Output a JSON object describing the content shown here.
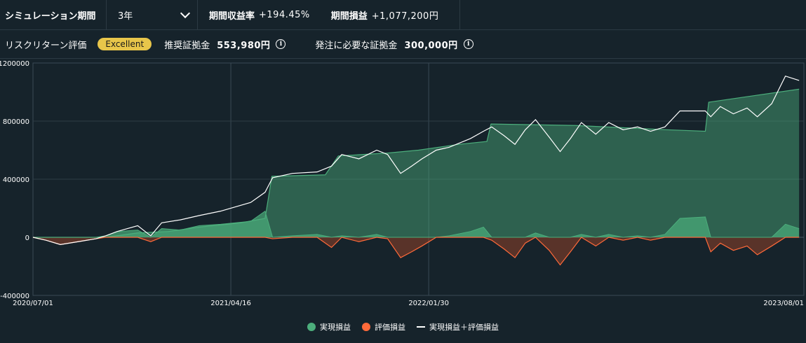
{
  "header": {
    "period_label": "シミュレーション期間",
    "period_value": "3年",
    "return_label": "期間収益率",
    "return_value": "+194.45%",
    "pnl_label": "期間損益",
    "pnl_value": "+1,077,200円"
  },
  "risk": {
    "label": "リスクリターン評価",
    "rating": "Excellent",
    "recommended_label": "推奨証拠金",
    "recommended_value": "553,980円",
    "required_label": "発注に必要な証拠金",
    "required_value": "300,000円"
  },
  "colors": {
    "realized": "#4cae7c",
    "unrealized": "#ff6a3a",
    "total": "#ffffff",
    "badge": "#e8c64a"
  },
  "chart_data": {
    "type": "area",
    "x_start": "2020/07/01",
    "x_end": "2023/08/01",
    "x_tick_labels": [
      "2020/07/01",
      "2021/04/16",
      "2022/01/30",
      "2023/08/01"
    ],
    "y_ticks": [
      1200000,
      800000,
      400000,
      0,
      -400000
    ],
    "ylim": [
      -400000,
      1200000
    ],
    "grid": true,
    "legend_position": "bottom-center",
    "series": [
      {
        "name": "実現損益",
        "color": "#4cae7c",
        "points": [
          [
            "2020/07/01",
            0
          ],
          [
            "2020/10/15",
            0
          ],
          [
            "2020/12/01",
            30000
          ],
          [
            "2021/01/15",
            40000
          ],
          [
            "2021/03/01",
            70000
          ],
          [
            "2021/05/01",
            100000
          ],
          [
            "2021/06/05",
            130000
          ],
          [
            "2021/06/15",
            420000
          ],
          [
            "2021/09/01",
            430000
          ],
          [
            "2021/09/20",
            560000
          ],
          [
            "2021/12/01",
            580000
          ],
          [
            "2022/01/15",
            600000
          ],
          [
            "2022/03/15",
            640000
          ],
          [
            "2022/04/25",
            660000
          ],
          [
            "2022/05/01",
            780000
          ],
          [
            "2022/09/01",
            770000
          ],
          [
            "2022/12/01",
            750000
          ],
          [
            "2023/01/15",
            740000
          ],
          [
            "2023/03/10",
            730000
          ],
          [
            "2023/03/15",
            930000
          ],
          [
            "2023/07/25",
            1020000
          ]
        ]
      },
      {
        "name": "評価損益",
        "color": "#ff6a3a",
        "points": [
          [
            "2020/07/01",
            0
          ],
          [
            "2020/07/20",
            -20000
          ],
          [
            "2020/08/10",
            -50000
          ],
          [
            "2020/09/05",
            -30000
          ],
          [
            "2020/10/01",
            -10000
          ],
          [
            "2020/10/15",
            10000
          ],
          [
            "2020/11/01",
            40000
          ],
          [
            "2020/12/01",
            50000
          ],
          [
            "2020/12/20",
            -30000
          ],
          [
            "2021/01/05",
            60000
          ],
          [
            "2021/02/01",
            50000
          ],
          [
            "2021/03/01",
            80000
          ],
          [
            "2021/04/01",
            90000
          ],
          [
            "2021/05/15",
            110000
          ],
          [
            "2021/06/05",
            180000
          ],
          [
            "2021/06/16",
            -10000
          ],
          [
            "2021/07/15",
            10000
          ],
          [
            "2021/08/20",
            20000
          ],
          [
            "2021/09/10",
            -70000
          ],
          [
            "2021/09/25",
            10000
          ],
          [
            "2021/10/20",
            -30000
          ],
          [
            "2021/11/15",
            20000
          ],
          [
            "2021/12/01",
            -10000
          ],
          [
            "2021/12/20",
            -140000
          ],
          [
            "2022/01/05",
            -100000
          ],
          [
            "2022/01/20",
            -60000
          ],
          [
            "2022/02/10",
            0
          ],
          [
            "2022/03/01",
            10000
          ],
          [
            "2022/04/01",
            40000
          ],
          [
            "2022/04/20",
            70000
          ],
          [
            "2022/05/02",
            -20000
          ],
          [
            "2022/05/20",
            -80000
          ],
          [
            "2022/06/05",
            -140000
          ],
          [
            "2022/06/20",
            -40000
          ],
          [
            "2022/07/05",
            30000
          ],
          [
            "2022/07/25",
            -90000
          ],
          [
            "2022/08/10",
            -190000
          ],
          [
            "2022/08/25",
            -100000
          ],
          [
            "2022/09/10",
            20000
          ],
          [
            "2022/10/01",
            -60000
          ],
          [
            "2022/10/20",
            20000
          ],
          [
            "2022/11/10",
            -20000
          ],
          [
            "2022/12/01",
            10000
          ],
          [
            "2022/12/20",
            -20000
          ],
          [
            "2023/01/10",
            20000
          ],
          [
            "2023/02/01",
            130000
          ],
          [
            "2023/03/10",
            140000
          ],
          [
            "2023/03/18",
            -100000
          ],
          [
            "2023/04/01",
            -40000
          ],
          [
            "2023/04/20",
            -90000
          ],
          [
            "2023/05/10",
            -60000
          ],
          [
            "2023/05/25",
            -120000
          ],
          [
            "2023/06/15",
            -60000
          ],
          [
            "2023/07/05",
            90000
          ],
          [
            "2023/07/25",
            60000
          ]
        ]
      },
      {
        "name": "実現損益＋評価損益",
        "color": "#ffffff",
        "points": [
          [
            "2020/07/01",
            0
          ],
          [
            "2020/07/20",
            -20000
          ],
          [
            "2020/08/10",
            -50000
          ],
          [
            "2020/09/05",
            -30000
          ],
          [
            "2020/10/01",
            -10000
          ],
          [
            "2020/10/15",
            10000
          ],
          [
            "2020/11/01",
            40000
          ],
          [
            "2020/12/01",
            80000
          ],
          [
            "2020/12/20",
            10000
          ],
          [
            "2021/01/05",
            100000
          ],
          [
            "2021/02/01",
            120000
          ],
          [
            "2021/03/01",
            150000
          ],
          [
            "2021/04/01",
            180000
          ],
          [
            "2021/05/15",
            240000
          ],
          [
            "2021/06/05",
            310000
          ],
          [
            "2021/06/16",
            410000
          ],
          [
            "2021/07/15",
            440000
          ],
          [
            "2021/08/20",
            450000
          ],
          [
            "2021/09/10",
            490000
          ],
          [
            "2021/09/25",
            570000
          ],
          [
            "2021/10/20",
            540000
          ],
          [
            "2021/11/15",
            600000
          ],
          [
            "2021/12/01",
            570000
          ],
          [
            "2021/12/20",
            440000
          ],
          [
            "2022/01/05",
            490000
          ],
          [
            "2022/01/20",
            540000
          ],
          [
            "2022/02/10",
            600000
          ],
          [
            "2022/03/01",
            620000
          ],
          [
            "2022/04/01",
            680000
          ],
          [
            "2022/04/20",
            730000
          ],
          [
            "2022/05/02",
            760000
          ],
          [
            "2022/05/20",
            700000
          ],
          [
            "2022/06/05",
            640000
          ],
          [
            "2022/06/20",
            740000
          ],
          [
            "2022/07/05",
            810000
          ],
          [
            "2022/07/25",
            690000
          ],
          [
            "2022/08/10",
            590000
          ],
          [
            "2022/08/25",
            680000
          ],
          [
            "2022/09/10",
            790000
          ],
          [
            "2022/10/01",
            710000
          ],
          [
            "2022/10/20",
            790000
          ],
          [
            "2022/11/10",
            740000
          ],
          [
            "2022/12/01",
            760000
          ],
          [
            "2022/12/20",
            730000
          ],
          [
            "2023/01/10",
            760000
          ],
          [
            "2023/02/01",
            870000
          ],
          [
            "2023/03/10",
            870000
          ],
          [
            "2023/03/18",
            830000
          ],
          [
            "2023/04/01",
            900000
          ],
          [
            "2023/04/20",
            850000
          ],
          [
            "2023/05/10",
            890000
          ],
          [
            "2023/05/25",
            830000
          ],
          [
            "2023/06/15",
            920000
          ],
          [
            "2023/07/05",
            1110000
          ],
          [
            "2023/07/25",
            1080000
          ]
        ]
      }
    ]
  }
}
